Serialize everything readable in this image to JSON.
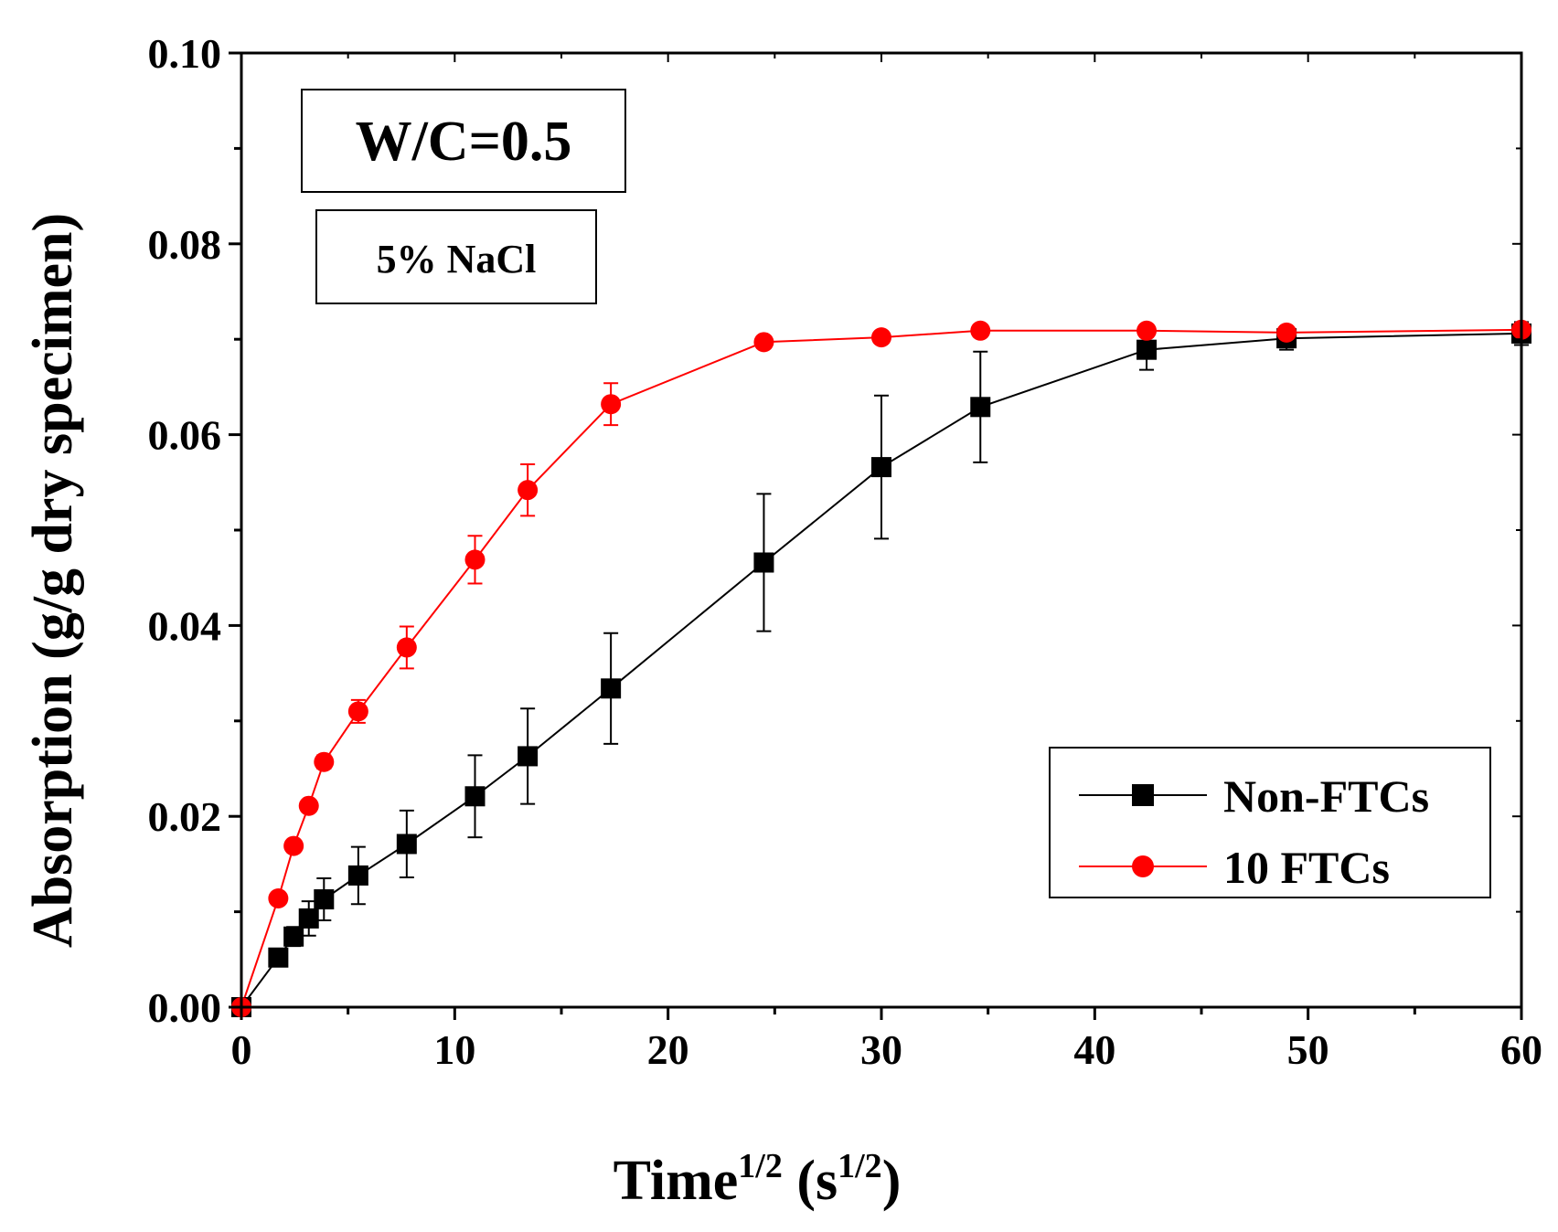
{
  "chart_data": {
    "type": "line",
    "title": "",
    "xlabel": {
      "main": "Time",
      "sup": "1/2",
      "unit_open": " (s",
      "unit_sup": "1/2",
      "unit_close": ")"
    },
    "ylabel": "Absorption (g/g dry specimen)",
    "xlim": [
      0,
      60
    ],
    "ylim": [
      0,
      0.1
    ],
    "xticks": [
      0,
      10,
      20,
      30,
      40,
      50,
      60
    ],
    "xtick_labels": [
      "0",
      "10",
      "20",
      "30",
      "40",
      "50",
      "60"
    ],
    "yticks": [
      0,
      0.02,
      0.04,
      0.06,
      0.08,
      0.1
    ],
    "ytick_labels": [
      "0.00",
      "0.02",
      "0.04",
      "0.06",
      "0.08",
      "0.10"
    ],
    "annotations": [
      "W/C=0.5",
      "5% NaCl"
    ],
    "legend_position": "lower-right",
    "grid": false,
    "series": [
      {
        "name": "Non-FTCs",
        "color": "#000000",
        "marker": "square",
        "x": [
          0,
          1.73,
          2.45,
          3.16,
          3.87,
          5.48,
          7.75,
          10.95,
          13.42,
          17.32,
          24.49,
          30.0,
          34.64,
          42.43,
          48.99,
          60.0
        ],
        "y": [
          0.0,
          0.0052,
          0.0074,
          0.0093,
          0.0113,
          0.0138,
          0.0171,
          0.0221,
          0.0263,
          0.0334,
          0.0466,
          0.0566,
          0.0629,
          0.0689,
          0.0701,
          0.0706
        ],
        "err": [
          0,
          0.0005,
          0.001,
          0.0018,
          0.0022,
          0.003,
          0.0035,
          0.0043,
          0.005,
          0.0058,
          0.0072,
          0.0075,
          0.0058,
          0.0021,
          0.0012,
          0.0012
        ]
      },
      {
        "name": "10 FTCs",
        "color": "#ff0000",
        "marker": "circle",
        "x": [
          0,
          1.73,
          2.45,
          3.16,
          3.87,
          5.48,
          7.75,
          10.95,
          13.42,
          17.32,
          24.49,
          30.0,
          34.64,
          42.43,
          48.99,
          60.0
        ],
        "y": [
          0.0,
          0.0114,
          0.0169,
          0.0211,
          0.0257,
          0.031,
          0.0377,
          0.0469,
          0.0542,
          0.0632,
          0.0697,
          0.0702,
          0.0709,
          0.0709,
          0.0707,
          0.071
        ],
        "err": [
          0,
          0.0004,
          0.0005,
          0.0006,
          0.0007,
          0.0012,
          0.0022,
          0.0025,
          0.0027,
          0.0022,
          0.0003,
          0.0002,
          0.0002,
          0.0002,
          0.0002,
          0.0002
        ]
      }
    ]
  }
}
